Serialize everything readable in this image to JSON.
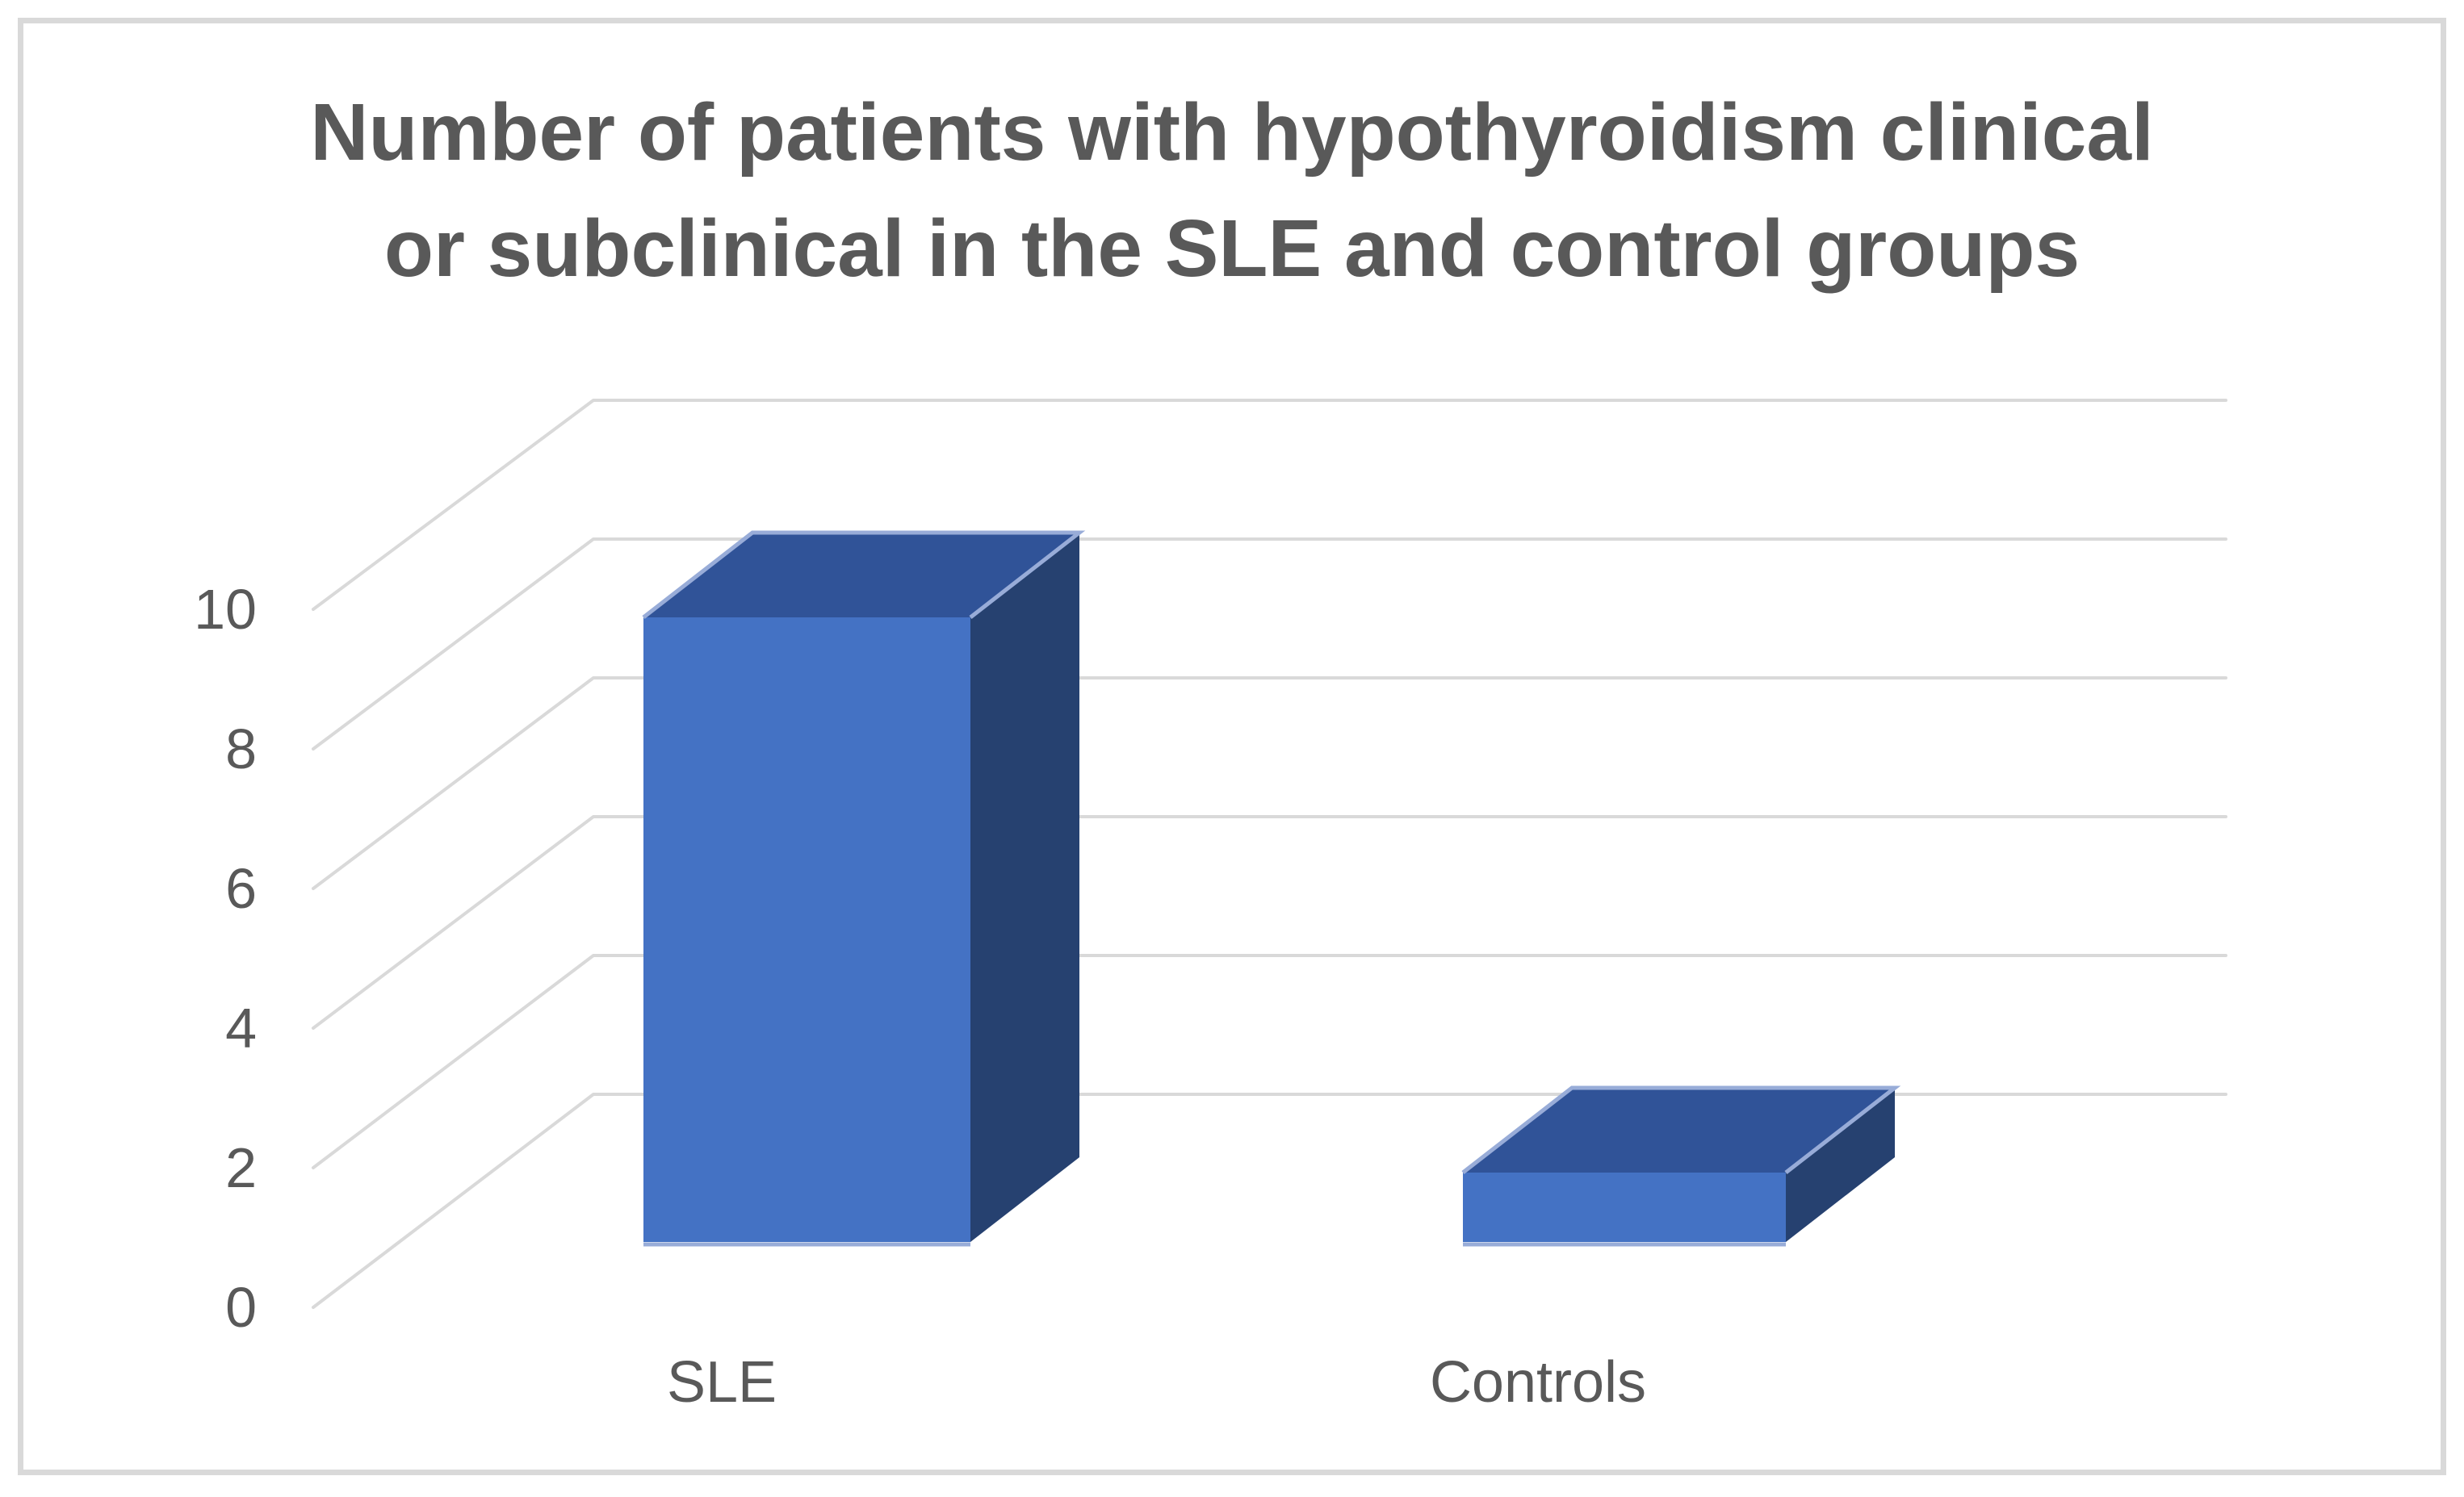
{
  "title": {
    "lines": [
      "Number of patients with hypothyroidism clinical",
      "or subclinical in the SLE and control groups"
    ],
    "full_text": "Number of patients with hypothyroidism clinical or subclinical in the SLE and control groups",
    "color": "#595959"
  },
  "chart_data": {
    "type": "bar",
    "subtype": "3d-column",
    "title": "Number of patients with hypothyroidism clinical or subclinical in the SLE and control groups",
    "categories": [
      "SLE",
      "Controls"
    ],
    "values": [
      9,
      1
    ],
    "series": [
      {
        "name": "Number of patients",
        "values": [
          9,
          1
        ]
      }
    ],
    "xlabel": "",
    "ylabel": "",
    "ylim": [
      0,
      10
    ],
    "ytick_interval": 2,
    "yticks": [
      0,
      2,
      4,
      6,
      8,
      10
    ],
    "grid": true,
    "legend_position": "none",
    "colors": {
      "bar_front": "#4472C4",
      "bar_top": "#305398",
      "bar_side": "#264170",
      "edge_highlight": "#98ACD8",
      "gridline": "#D9D9D9",
      "frame": "#D9D9D9",
      "text": "#595959",
      "background": "#FFFFFF"
    }
  }
}
